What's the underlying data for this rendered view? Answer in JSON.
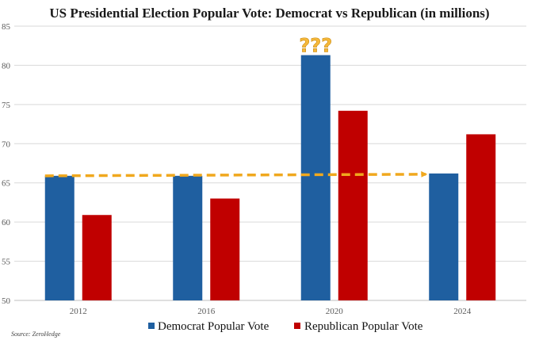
{
  "chart_data": {
    "type": "bar",
    "title": "US Presidential Election Popular Vote: Democrat vs Republican (in millions)",
    "categories": [
      "2012",
      "2016",
      "2020",
      "2024"
    ],
    "series": [
      {
        "name": "Democrat Popular Vote",
        "color": "#1f5fa0",
        "values": [
          65.9,
          65.9,
          81.3,
          66.2
        ]
      },
      {
        "name": "Republican Popular Vote",
        "color": "#c00000",
        "values": [
          60.9,
          63.0,
          74.2,
          71.2
        ]
      }
    ],
    "ylim": [
      50,
      85
    ],
    "yticks": [
      50,
      55,
      60,
      65,
      70,
      75,
      80,
      85
    ],
    "grid": true,
    "legend": "bottom",
    "annotations": [
      {
        "text": "???",
        "target": "2020 Democrat bar"
      },
      {
        "text": "",
        "type": "dashed-arrow",
        "color": "#f0a81e",
        "from": {
          "x": "2012",
          "y": 65.9
        },
        "to": {
          "x": "2024",
          "y": 66.2
        }
      }
    ],
    "source": "Source: ZeroHedge"
  }
}
